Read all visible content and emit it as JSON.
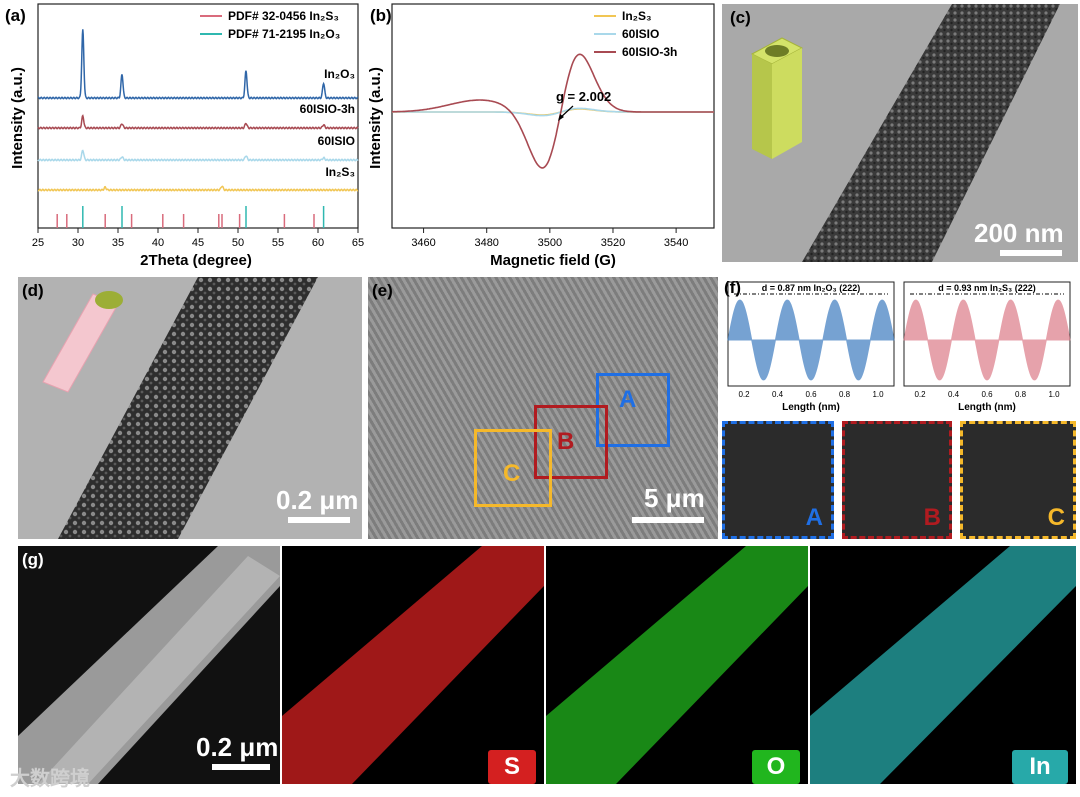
{
  "panel_labels": {
    "a": "(a)",
    "b": "(b)",
    "c": "(c)",
    "d": "(d)",
    "e": "(e)",
    "f": "(f)",
    "g": "(g)"
  },
  "chart_data": [
    {
      "type": "line",
      "panel": "(a)",
      "xlabel": "2Theta (degree)",
      "ylabel": "Intensity (a.u.)",
      "xlim": [
        25,
        65
      ],
      "xticks": [
        25,
        30,
        35,
        40,
        45,
        50,
        55,
        60,
        65
      ],
      "legend": [
        {
          "name": "PDF# 32-0456 In₂S₃",
          "color": "#d96b7c"
        },
        {
          "name": "PDF# 71-2195 In₂O₃",
          "color": "#2fb8b0"
        }
      ],
      "series": [
        {
          "name": "In₂O₃",
          "color": "#2f66a8",
          "peaks": [
            [
              30.6,
              1.0
            ],
            [
              35.5,
              0.35
            ],
            [
              51.0,
              0.4
            ],
            [
              60.7,
              0.22
            ]
          ]
        },
        {
          "name": "60ISIO-3h",
          "color": "#a84a52",
          "peaks": [
            [
              30.6,
              0.55
            ],
            [
              35.5,
              0.2
            ],
            [
              51.0,
              0.22
            ],
            [
              60.7,
              0.15
            ]
          ]
        },
        {
          "name": "60ISIO",
          "color": "#a9d8ea",
          "peaks": [
            [
              30.6,
              0.45
            ],
            [
              35.5,
              0.15
            ],
            [
              51.0,
              0.2
            ],
            [
              60.7,
              0.1
            ]
          ]
        },
        {
          "name": "In₂S₃",
          "color": "#f1c654",
          "peaks": [
            [
              33.4,
              0.15
            ],
            [
              48.0,
              0.22
            ]
          ]
        }
      ],
      "reference_lines": {
        "In2S3": [
          27.4,
          28.6,
          33.4,
          36.7,
          40.6,
          43.2,
          47.6,
          48.0,
          50.2,
          55.8,
          59.5
        ],
        "In2O3": [
          30.6,
          35.5,
          51.0,
          60.7
        ]
      }
    },
    {
      "type": "line",
      "panel": "(b)",
      "xlabel": "Magnetic field (G)",
      "ylabel": "Intensity (a.u.)",
      "xlim": [
        3450,
        3552
      ],
      "xticks": [
        3460,
        3480,
        3500,
        3520,
        3540
      ],
      "annotation": "g = 2.002",
      "legend": [
        {
          "name": "In₂S₃",
          "color": "#f1c654"
        },
        {
          "name": "60ISIO",
          "color": "#a9d8ea"
        },
        {
          "name": "60ISIO-3h",
          "color": "#a84a52"
        }
      ]
    }
  ],
  "tem": {
    "c_scale": "200 nm",
    "d_scale": "0.2 μm",
    "e_scale": "5 μm",
    "g_scale": "0.2 μm",
    "regions": [
      "A",
      "B",
      "C"
    ]
  },
  "profiles": {
    "left": {
      "annotation": "d = 0.87 nm In₂O₃ (222)",
      "xlabel": "Length (nm)",
      "ticks": [
        "0.2",
        "0.4",
        "0.6",
        "0.8",
        "1.0"
      ],
      "color": "#3d7cc0"
    },
    "right": {
      "annotation": "d = 0.93 nm In₂S₃ (222)",
      "xlabel": "Length (nm)",
      "ticks": [
        "0.2",
        "0.4",
        "0.6",
        "0.8",
        "1.0"
      ],
      "color": "#dc7b88"
    }
  },
  "fft": [
    {
      "letter": "A",
      "color": "#1f6fe5"
    },
    {
      "letter": "B",
      "color": "#b11b20"
    },
    {
      "letter": "C",
      "color": "#f5b82a"
    }
  ],
  "maps": [
    {
      "label": "S",
      "color": "#d42020"
    },
    {
      "label": "O",
      "color": "#21b61e"
    },
    {
      "label": "In",
      "color": "#27a9a9"
    }
  ],
  "watermark": "大数跨境"
}
